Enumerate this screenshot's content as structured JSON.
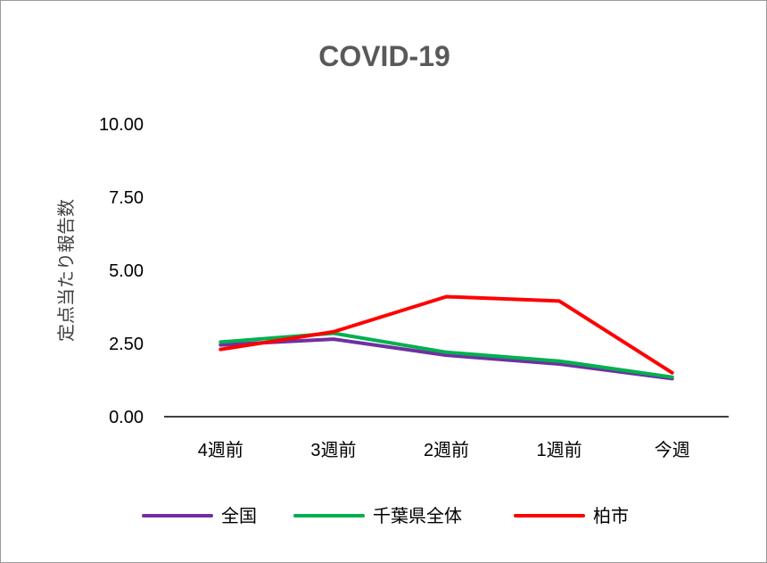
{
  "chart_data": {
    "type": "line",
    "title": "COVID-19",
    "xlabel": "",
    "ylabel": "定点当たり報告数",
    "categories": [
      "4週前",
      "3週前",
      "2週前",
      "1週前",
      "今週"
    ],
    "ylim": [
      0,
      10
    ],
    "yticks": [
      "0.00",
      "2.50",
      "5.00",
      "7.50",
      "10.00"
    ],
    "grid": false,
    "legend_position": "bottom",
    "series": [
      {
        "name": "全国",
        "color": "#7030a0",
        "values": [
          2.45,
          2.65,
          2.1,
          1.8,
          1.3
        ]
      },
      {
        "name": "千葉県全体",
        "color": "#00b050",
        "values": [
          2.55,
          2.85,
          2.2,
          1.9,
          1.35
        ]
      },
      {
        "name": "柏市",
        "color": "#ff0000",
        "values": [
          2.3,
          2.9,
          4.1,
          3.95,
          1.5
        ]
      }
    ]
  }
}
